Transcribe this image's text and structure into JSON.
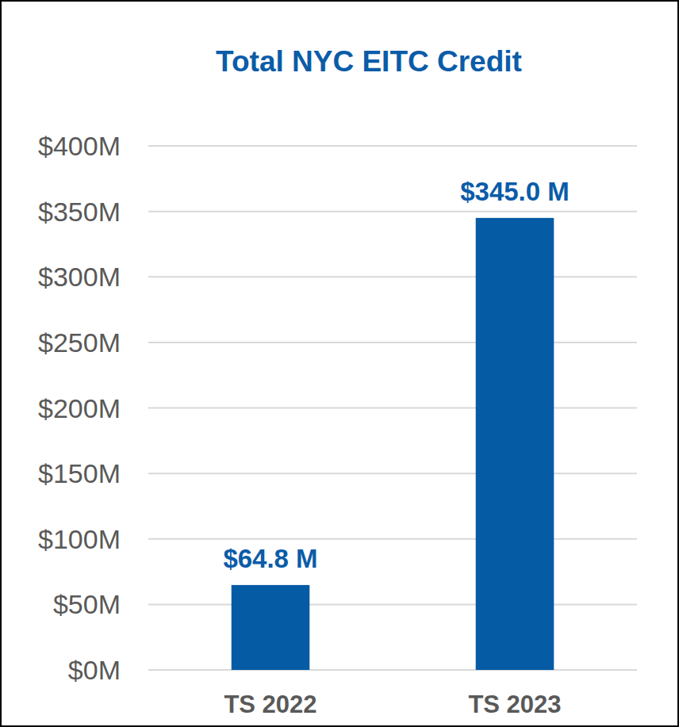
{
  "chart_data": {
    "type": "bar",
    "title": "Total NYC EITC Credit",
    "categories": [
      "TS 2022",
      "TS 2023"
    ],
    "values": [
      64.8,
      345.0
    ],
    "value_labels": [
      "$64.8 M",
      "$345.0 M"
    ],
    "color": "#065ba5",
    "ylim": [
      0,
      400
    ],
    "yticks": [
      {
        "value": 0,
        "label": "$0M"
      },
      {
        "value": 50,
        "label": "$50M"
      },
      {
        "value": 100,
        "label": "$100M"
      },
      {
        "value": 150,
        "label": "$150M"
      },
      {
        "value": 200,
        "label": "$200M"
      },
      {
        "value": 250,
        "label": "$250M"
      },
      {
        "value": 300,
        "label": "$300M"
      },
      {
        "value": 350,
        "label": "$350M"
      },
      {
        "value": 400,
        "label": "$400M"
      }
    ],
    "grid": true,
    "data_labels": true
  }
}
